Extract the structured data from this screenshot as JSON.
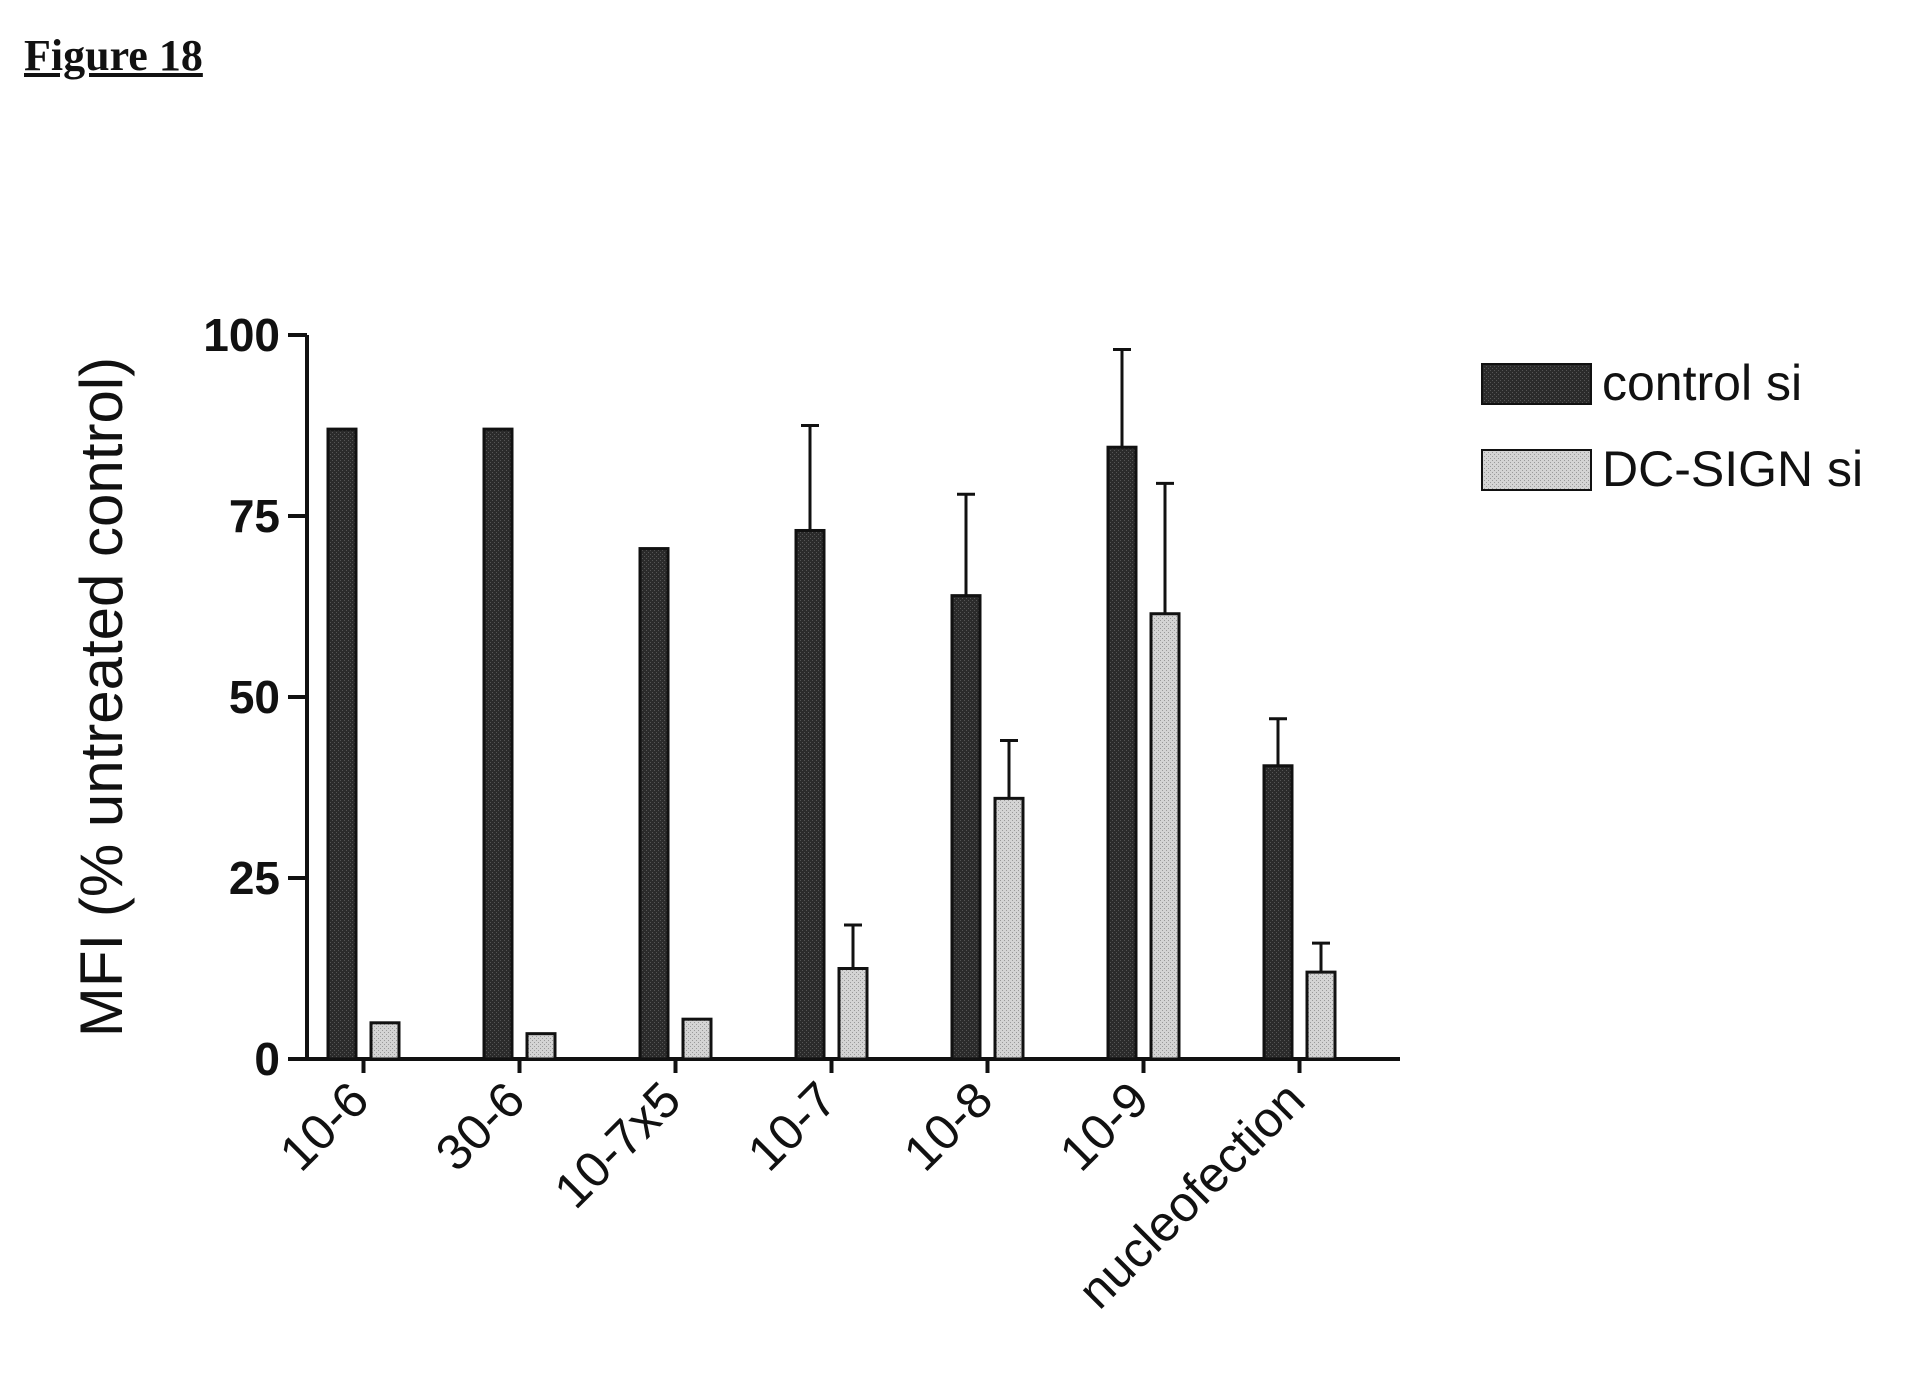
{
  "figure": {
    "title": "Figure 18"
  },
  "chart_data": {
    "type": "bar",
    "title": "",
    "xlabel": "",
    "ylabel": "MFI (% untreated control)",
    "ylim": [
      0,
      100
    ],
    "yticks": [
      0,
      25,
      50,
      75,
      100
    ],
    "ytick_labels": [
      "0",
      "25",
      "50",
      "75",
      "100"
    ],
    "grid": false,
    "legend_position": "top-right",
    "categories": [
      "10-6",
      "30-6",
      "10-7x5",
      "10-7",
      "10-8",
      "10-9",
      "nucleofection"
    ],
    "series": [
      {
        "name": "control si",
        "color": "#2b2b2b",
        "values": [
          87,
          87,
          70.5,
          73,
          64,
          84.5,
          40.5
        ],
        "error": [
          null,
          null,
          null,
          14.5,
          14,
          13.5,
          6.5
        ]
      },
      {
        "name": "DC-SIGN si",
        "color": "#c9c9c9",
        "values": [
          5,
          3.5,
          5.5,
          12.5,
          36,
          61.5,
          12
        ],
        "error": [
          null,
          null,
          null,
          6,
          8,
          18,
          4
        ]
      }
    ]
  }
}
